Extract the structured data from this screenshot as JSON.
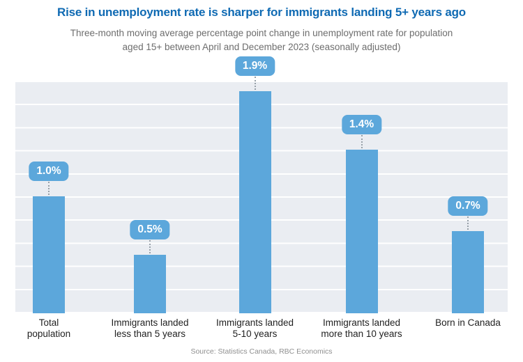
{
  "header": {
    "title": "Rise in unemployment rate is sharper for immigrants landing 5+ years ago",
    "subtitle_line1": "Three-month moving average percentage point change in unemployment rate for population",
    "subtitle_line2": "aged 15+ between April and December 2023 (seasonally adjusted)"
  },
  "chart_data": {
    "type": "bar",
    "title": "Rise in unemployment rate is sharper for immigrants landing 5+ years ago",
    "subtitle": "Three-month moving average percentage point change in unemployment rate for population aged 15+ between April and December 2023 (seasonally adjusted)",
    "categories": [
      "Total population",
      "Immigrants landed less than 5 years",
      "Immigrants landed 5-10 years",
      "Immigrants landed more than 10 years",
      "Born in Canada"
    ],
    "category_lines": [
      [
        "Total",
        "population"
      ],
      [
        "Immigrants landed",
        "less than 5 years"
      ],
      [
        "Immigrants landed",
        "5-10 years"
      ],
      [
        "Immigrants landed",
        "more than 10 years"
      ],
      [
        "Born in Canada"
      ]
    ],
    "values": [
      1.0,
      0.5,
      1.9,
      1.4,
      0.7
    ],
    "value_labels": [
      "1.0%",
      "0.5%",
      "1.9%",
      "1.4%",
      "0.7%"
    ],
    "xlabel": "",
    "ylabel": "",
    "ylim": [
      0,
      2.0
    ],
    "grid": "horizontal white gridlines every 0.2 on light gray panel, no y-axis tick labels",
    "legend": "none",
    "data_label_style": "rounded blue badge with white text, dotted connector to bar top"
  },
  "footer": {
    "source": "Source: Statistics Canada, RBC Economics"
  },
  "theme": {
    "title_color": "#0f6ab3",
    "bar_color": "#5ca7db",
    "badge_text_color": "#ffffff",
    "plot_bg": "#eaedf2",
    "gridline_color": "#ffffff",
    "subtitle_color": "#6d6d6d",
    "axis_label_color": "#1f1f1f",
    "source_color": "#8f8f8f",
    "connector_color": "#97a0a8"
  }
}
